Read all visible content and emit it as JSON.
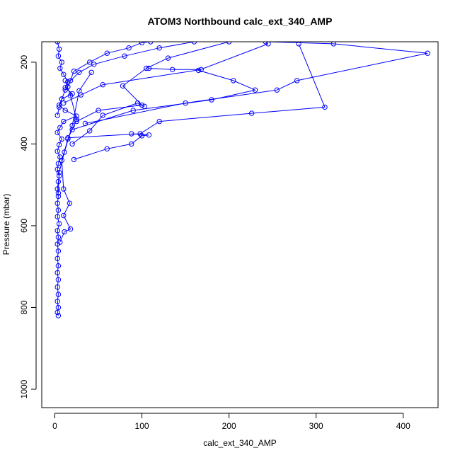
{
  "chart_data": {
    "type": "line",
    "title": "ATOM3 Northbound calc_ext_340_AMP",
    "xlabel": "calc_ext_340_AMP",
    "ylabel": "Pressure (mbar)",
    "xlim": [
      -15,
      440
    ],
    "ylim": [
      1045,
      150
    ],
    "y_reversed": true,
    "grid": false,
    "color": "#0000ff",
    "marker": "open-circle",
    "xticks": [
      0,
      100,
      200,
      300,
      400
    ],
    "yticks": [
      200,
      400,
      600,
      800,
      1000
    ],
    "series": [
      {
        "values": [
          [
            3,
            150
          ],
          [
            5,
            168
          ],
          [
            4,
            185
          ],
          [
            8,
            200
          ],
          [
            6,
            215
          ],
          [
            10,
            230
          ],
          [
            15,
            248
          ],
          [
            12,
            262
          ],
          [
            20,
            277
          ],
          [
            8,
            290
          ],
          [
            5,
            305
          ],
          [
            12,
            318
          ],
          [
            25,
            332
          ],
          [
            10,
            345
          ],
          [
            6,
            360
          ],
          [
            3,
            372
          ],
          [
            8,
            388
          ],
          [
            5,
            402
          ],
          [
            3,
            418
          ],
          [
            6,
            432
          ],
          [
            4,
            448
          ],
          [
            3,
            462
          ],
          [
            5,
            478
          ],
          [
            4,
            492
          ],
          [
            3,
            510
          ],
          [
            4,
            528
          ],
          [
            3,
            545
          ],
          [
            4,
            562
          ],
          [
            3,
            578
          ],
          [
            5,
            595
          ],
          [
            3,
            612
          ],
          [
            4,
            628
          ],
          [
            3,
            645
          ],
          [
            4,
            662
          ],
          [
            3,
            680
          ],
          [
            4,
            698
          ],
          [
            3,
            715
          ],
          [
            4,
            732
          ],
          [
            3,
            750
          ],
          [
            4,
            768
          ],
          [
            3,
            785
          ],
          [
            4,
            800
          ],
          [
            3,
            812
          ],
          [
            4,
            820
          ]
        ]
      },
      {
        "values": [
          [
            160,
            150
          ],
          [
            120,
            165
          ],
          [
            80,
            185
          ],
          [
            45,
            205
          ],
          [
            28,
            225
          ],
          [
            18,
            245
          ],
          [
            12,
            268
          ],
          [
            8,
            290
          ],
          [
            5,
            310
          ],
          [
            3,
            330
          ]
        ]
      },
      {
        "values": [
          [
            200,
            150
          ],
          [
            130,
            190
          ],
          [
            105,
            215
          ],
          [
            78,
            258
          ],
          [
            100,
            305
          ],
          [
            50,
            318
          ],
          [
            25,
            345
          ]
        ]
      },
      {
        "values": [
          [
            242,
            150
          ],
          [
            320,
            155
          ],
          [
            428,
            178
          ],
          [
            278,
            245
          ],
          [
            255,
            268
          ],
          [
            150,
            300
          ],
          [
            35,
            350
          ]
        ]
      },
      {
        "values": [
          [
            245,
            155
          ],
          [
            165,
            220
          ],
          [
            205,
            245
          ],
          [
            230,
            268
          ],
          [
            180,
            292
          ],
          [
            90,
            318
          ],
          [
            20,
            365
          ]
        ]
      },
      {
        "values": [
          [
            280,
            155
          ],
          [
            310,
            310
          ],
          [
            226,
            325
          ],
          [
            120,
            345
          ],
          [
            98,
            375
          ],
          [
            15,
            385
          ]
        ]
      },
      {
        "values": [
          [
            108,
            215
          ],
          [
            135,
            218
          ],
          [
            168,
            218
          ],
          [
            55,
            255
          ],
          [
            30,
            280
          ],
          [
            10,
            300
          ]
        ]
      },
      {
        "values": [
          [
            103,
            308
          ],
          [
            95,
            300
          ],
          [
            55,
            330
          ],
          [
            40,
            368
          ],
          [
            20,
            400
          ]
        ]
      },
      {
        "values": [
          [
            88,
            375
          ],
          [
            108,
            378
          ],
          [
            100,
            380
          ],
          [
            88,
            400
          ],
          [
            60,
            412
          ],
          [
            22,
            438
          ]
        ]
      },
      {
        "values": [
          [
            12,
            245
          ],
          [
            18,
            282
          ],
          [
            25,
            340
          ],
          [
            15,
            388
          ],
          [
            8,
            440
          ],
          [
            10,
            510
          ],
          [
            17,
            545
          ],
          [
            10,
            575
          ],
          [
            18,
            608
          ],
          [
            11,
            615
          ],
          [
            6,
            640
          ]
        ]
      },
      {
        "values": [
          [
            42,
            225
          ],
          [
            28,
            270
          ],
          [
            20,
            355
          ],
          [
            11,
            420
          ],
          [
            5,
            470
          ],
          [
            4,
            520
          ]
        ]
      },
      {
        "values": [
          [
            110,
            150
          ],
          [
            100,
            152
          ],
          [
            85,
            165
          ],
          [
            60,
            178
          ],
          [
            40,
            200
          ],
          [
            22,
            222
          ],
          [
            15,
            260
          ]
        ]
      }
    ]
  }
}
